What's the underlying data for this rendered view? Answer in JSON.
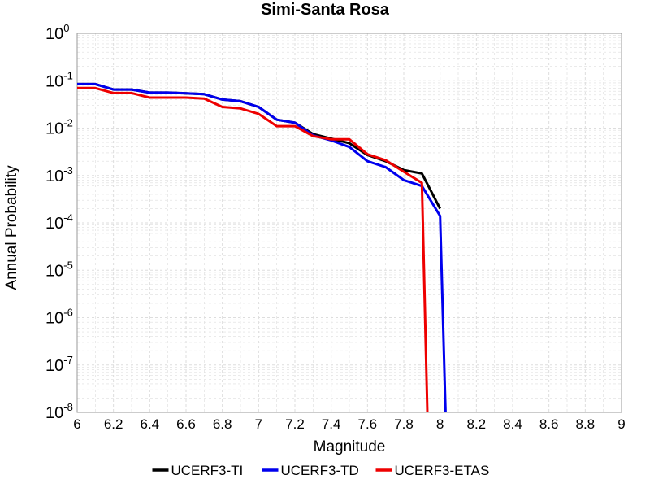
{
  "chart_data": {
    "type": "line",
    "title": "Simi-Santa Rosa",
    "xlabel": "Magnitude",
    "ylabel": "Annual Probability",
    "xlim": [
      6,
      9
    ],
    "ylim": [
      1e-08,
      1
    ],
    "yscale": "log",
    "grid": true,
    "legend_position": "bottom",
    "x_ticks": [
      "6",
      "6.2",
      "6.4",
      "6.6",
      "6.8",
      "7",
      "7.2",
      "7.4",
      "7.6",
      "7.8",
      "8",
      "8.2",
      "8.4",
      "8.6",
      "8.8",
      "9"
    ],
    "y_tick_exponents": [
      "0",
      "-1",
      "-2",
      "-3",
      "-4",
      "-5",
      "-6",
      "-7",
      "-8"
    ],
    "y_tick_base": "10",
    "series": [
      {
        "name": "UCERF3-TI",
        "color": "#000000",
        "x": [
          6.0,
          6.1,
          6.2,
          6.3,
          6.4,
          6.5,
          6.6,
          6.7,
          6.8,
          6.9,
          7.0,
          7.1,
          7.2,
          7.3,
          7.4,
          7.5,
          7.6,
          7.7,
          7.8,
          7.9,
          8.0
        ],
        "y": [
          0.085,
          0.085,
          0.065,
          0.065,
          0.056,
          0.056,
          0.054,
          0.052,
          0.04,
          0.037,
          0.028,
          0.015,
          0.013,
          0.0075,
          0.006,
          0.0048,
          0.0027,
          0.002,
          0.0013,
          0.0011,
          0.0002
        ]
      },
      {
        "name": "UCERF3-TD",
        "color": "#0000ee",
        "x": [
          6.0,
          6.1,
          6.2,
          6.3,
          6.4,
          6.5,
          6.6,
          6.7,
          6.8,
          6.9,
          7.0,
          7.1,
          7.2,
          7.3,
          7.4,
          7.5,
          7.6,
          7.7,
          7.8,
          7.9,
          8.0,
          8.03
        ],
        "y": [
          0.085,
          0.085,
          0.065,
          0.065,
          0.056,
          0.056,
          0.054,
          0.052,
          0.04,
          0.037,
          0.028,
          0.015,
          0.013,
          0.007,
          0.0055,
          0.004,
          0.002,
          0.0015,
          0.0008,
          0.0006,
          0.00014,
          1e-08
        ]
      },
      {
        "name": "UCERF3-ETAS",
        "color": "#ee0000",
        "x": [
          6.0,
          6.1,
          6.2,
          6.3,
          6.4,
          6.5,
          6.6,
          6.7,
          6.8,
          6.9,
          7.0,
          7.1,
          7.2,
          7.3,
          7.4,
          7.5,
          7.6,
          7.7,
          7.8,
          7.9,
          7.93
        ],
        "y": [
          0.07,
          0.07,
          0.055,
          0.055,
          0.044,
          0.044,
          0.044,
          0.042,
          0.028,
          0.026,
          0.02,
          0.011,
          0.011,
          0.0068,
          0.0058,
          0.0058,
          0.0028,
          0.0021,
          0.0012,
          0.0007,
          1e-08
        ]
      }
    ]
  }
}
